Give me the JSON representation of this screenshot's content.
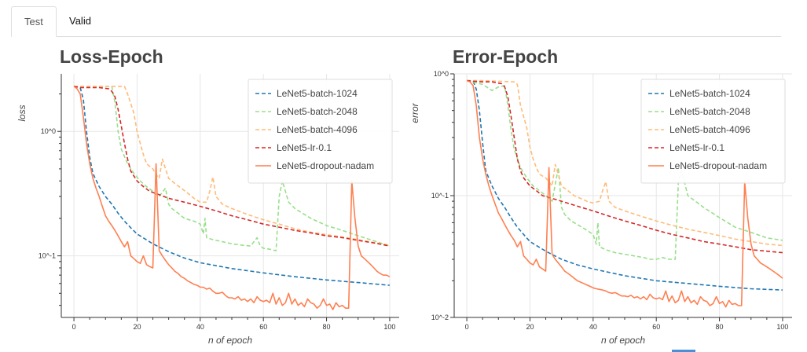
{
  "tabs": [
    {
      "label": "Test",
      "active": true
    },
    {
      "label": "Valid",
      "active": false
    }
  ],
  "chart_data": [
    {
      "type": "line",
      "title": "Loss-Epoch",
      "xlabel": "n of epoch",
      "ylabel": "loss",
      "yscale": "log",
      "xlim": [
        -4,
        103
      ],
      "ylim": [
        0.032,
        2.9
      ],
      "xticks": [
        0,
        20,
        40,
        60,
        80,
        100
      ],
      "yticks": [
        {
          "value": 1.0,
          "label": "10^0"
        },
        {
          "value": 0.1,
          "label": "10^-1"
        }
      ],
      "grid": true,
      "legend": "top-right",
      "series": [
        {
          "name": "LeNet5-batch-1024",
          "color": "#1f77b4",
          "dash": "dash",
          "x": [
            0,
            2,
            3,
            4,
            5,
            6,
            8,
            10,
            12,
            14,
            16,
            18,
            20,
            25,
            30,
            35,
            40,
            50,
            60,
            70,
            80,
            90,
            100
          ],
          "y": [
            2.3,
            2.25,
            1.8,
            1.0,
            0.62,
            0.46,
            0.36,
            0.3,
            0.26,
            0.22,
            0.19,
            0.168,
            0.15,
            0.125,
            0.108,
            0.096,
            0.088,
            0.079,
            0.073,
            0.068,
            0.064,
            0.061,
            0.058
          ]
        },
        {
          "name": "LeNet5-batch-2048",
          "color": "#98df8a",
          "dash": "dash",
          "x": [
            0,
            5,
            8,
            10,
            12,
            13,
            14,
            15,
            17,
            19,
            21,
            23,
            25,
            27,
            29,
            30,
            31,
            33,
            35,
            38,
            40,
            41,
            41.5,
            42,
            44,
            47,
            50,
            53,
            56,
            57,
            58,
            59,
            60,
            62,
            64,
            65,
            66,
            68,
            70,
            75,
            80,
            85,
            90,
            95,
            100
          ],
          "y": [
            2.3,
            2.3,
            2.3,
            2.3,
            2.3,
            1.7,
            1.0,
            0.72,
            0.55,
            0.46,
            0.4,
            0.36,
            0.33,
            0.3,
            0.35,
            0.26,
            0.24,
            0.22,
            0.2,
            0.19,
            0.18,
            0.15,
            0.2,
            0.14,
            0.135,
            0.13,
            0.125,
            0.122,
            0.12,
            0.13,
            0.14,
            0.12,
            0.115,
            0.113,
            0.11,
            0.3,
            0.4,
            0.27,
            0.24,
            0.2,
            0.175,
            0.16,
            0.145,
            0.132,
            0.12
          ]
        },
        {
          "name": "LeNet5-batch-4096",
          "color": "#ffbb78",
          "dash": "dash",
          "x": [
            0,
            5,
            10,
            15,
            16,
            17,
            19,
            20,
            21,
            22,
            23,
            25,
            26,
            27,
            28,
            29,
            30,
            32,
            34,
            36,
            38,
            40,
            42,
            43,
            44,
            45,
            47,
            50,
            55,
            60,
            65,
            70,
            75,
            80,
            85,
            90,
            95,
            100
          ],
          "y": [
            2.3,
            2.3,
            2.3,
            2.3,
            2.3,
            2.0,
            1.4,
            1.0,
            0.8,
            0.65,
            0.55,
            0.5,
            0.45,
            0.42,
            0.6,
            0.5,
            0.42,
            0.38,
            0.35,
            0.32,
            0.29,
            0.27,
            0.27,
            0.33,
            0.43,
            0.3,
            0.26,
            0.24,
            0.215,
            0.195,
            0.18,
            0.165,
            0.155,
            0.148,
            0.142,
            0.135,
            0.128,
            0.122
          ]
        },
        {
          "name": "LeNet5-lr-0.1",
          "color": "#d62728",
          "dash": "dash",
          "x": [
            0,
            2,
            5,
            8,
            11,
            12,
            13,
            14,
            15,
            16,
            17,
            18,
            20,
            22,
            24,
            27,
            30,
            35,
            40,
            45,
            50,
            55,
            60,
            65,
            70,
            75,
            80,
            85,
            90,
            95,
            100
          ],
          "y": [
            2.3,
            2.25,
            2.25,
            2.25,
            2.2,
            2.1,
            1.9,
            1.5,
            1.1,
            0.8,
            0.6,
            0.48,
            0.4,
            0.36,
            0.33,
            0.31,
            0.29,
            0.27,
            0.25,
            0.23,
            0.21,
            0.195,
            0.18,
            0.17,
            0.16,
            0.153,
            0.145,
            0.14,
            0.133,
            0.127,
            0.12
          ]
        },
        {
          "name": "LeNet5-dropout-nadam",
          "color": "#ff7f50",
          "dash": "solid",
          "x": [
            0,
            1,
            2,
            3,
            4,
            5,
            6,
            7,
            8,
            9,
            10,
            11,
            12,
            13,
            14,
            15,
            16,
            17,
            18,
            19,
            20,
            21,
            22,
            23,
            24,
            25,
            26,
            27,
            28,
            29,
            30,
            31,
            32,
            33,
            34,
            35,
            36,
            37,
            38,
            39,
            40,
            41,
            42,
            43,
            44,
            45,
            46,
            47,
            48,
            49,
            50,
            51,
            52,
            53,
            54,
            55,
            56,
            57,
            58,
            59,
            60,
            61,
            62,
            63,
            64,
            65,
            66,
            67,
            68,
            69,
            70,
            71,
            72,
            73,
            74,
            75,
            76,
            77,
            78,
            79,
            80,
            81,
            82,
            83,
            84,
            85,
            86,
            87,
            88,
            89,
            90,
            91,
            92,
            93,
            94,
            95,
            96,
            97,
            98,
            99,
            100
          ],
          "y": [
            2.3,
            2.2,
            2.0,
            1.3,
            0.8,
            0.55,
            0.42,
            0.35,
            0.3,
            0.25,
            0.21,
            0.19,
            0.175,
            0.16,
            0.145,
            0.13,
            0.118,
            0.13,
            0.1,
            0.095,
            0.09,
            0.087,
            0.1,
            0.085,
            0.082,
            0.08,
            0.55,
            0.11,
            0.1,
            0.092,
            0.085,
            0.08,
            0.075,
            0.072,
            0.068,
            0.066,
            0.063,
            0.061,
            0.059,
            0.058,
            0.056,
            0.056,
            0.054,
            0.055,
            0.052,
            0.05,
            0.05,
            0.051,
            0.048,
            0.046,
            0.046,
            0.045,
            0.047,
            0.044,
            0.045,
            0.043,
            0.045,
            0.042,
            0.047,
            0.044,
            0.043,
            0.044,
            0.042,
            0.05,
            0.041,
            0.046,
            0.04,
            0.042,
            0.05,
            0.041,
            0.045,
            0.04,
            0.042,
            0.039,
            0.045,
            0.042,
            0.041,
            0.038,
            0.04,
            0.045,
            0.04,
            0.041,
            0.037,
            0.042,
            0.039,
            0.04,
            0.038,
            0.038,
            0.4,
            0.2,
            0.12,
            0.1,
            0.095,
            0.09,
            0.085,
            0.08,
            0.075,
            0.072,
            0.07,
            0.07,
            0.068
          ]
        }
      ]
    },
    {
      "type": "line",
      "title": "Error-Epoch",
      "xlabel": "n of epoch",
      "ylabel": "error",
      "yscale": "log",
      "xlim": [
        -4,
        103
      ],
      "ylim": [
        0.01,
        1.0
      ],
      "xticks": [
        0,
        20,
        40,
        60,
        80,
        100
      ],
      "yticks": [
        {
          "value": 1.0,
          "label": "10^0"
        },
        {
          "value": 0.1,
          "label": "10^-1"
        },
        {
          "value": 0.01,
          "label": "10^-2"
        }
      ],
      "grid": true,
      "legend": "top-right",
      "series": [
        {
          "name": "LeNet5-batch-1024",
          "color": "#1f77b4",
          "dash": "dash",
          "x": [
            0,
            2,
            3,
            4,
            5,
            6,
            8,
            10,
            12,
            14,
            16,
            18,
            20,
            25,
            30,
            35,
            40,
            50,
            60,
            70,
            80,
            90,
            100
          ],
          "y": [
            0.88,
            0.87,
            0.75,
            0.5,
            0.27,
            0.16,
            0.12,
            0.095,
            0.08,
            0.066,
            0.055,
            0.048,
            0.042,
            0.035,
            0.03,
            0.027,
            0.025,
            0.022,
            0.02,
            0.019,
            0.018,
            0.0172,
            0.0168
          ]
        },
        {
          "name": "LeNet5-batch-2048",
          "color": "#98df8a",
          "dash": "dash",
          "x": [
            0,
            5,
            8,
            10,
            12,
            13,
            14,
            15,
            17,
            19,
            21,
            23,
            25,
            27,
            29,
            30,
            31,
            33,
            35,
            38,
            40,
            41,
            41.5,
            42,
            44,
            47,
            50,
            53,
            56,
            58,
            60,
            62,
            64,
            66,
            67,
            68,
            70,
            75,
            80,
            85,
            90,
            95,
            100
          ],
          "y": [
            0.88,
            0.82,
            0.73,
            0.78,
            0.8,
            0.55,
            0.35,
            0.24,
            0.17,
            0.14,
            0.12,
            0.11,
            0.1,
            0.09,
            0.17,
            0.08,
            0.07,
            0.062,
            0.058,
            0.052,
            0.048,
            0.04,
            0.06,
            0.038,
            0.036,
            0.034,
            0.033,
            0.032,
            0.031,
            0.03,
            0.03,
            0.031,
            0.03,
            0.03,
            0.13,
            0.16,
            0.1,
            0.08,
            0.066,
            0.055,
            0.05,
            0.045,
            0.043
          ]
        },
        {
          "name": "LeNet5-batch-4096",
          "color": "#ffbb78",
          "dash": "dash",
          "x": [
            0,
            5,
            10,
            15,
            16,
            17,
            19,
            20,
            21,
            22,
            23,
            25,
            26,
            27,
            28,
            29,
            30,
            32,
            34,
            36,
            38,
            40,
            42,
            43,
            44,
            45,
            47,
            50,
            55,
            60,
            65,
            70,
            75,
            80,
            85,
            90,
            95,
            100
          ],
          "y": [
            0.88,
            0.88,
            0.87,
            0.86,
            0.82,
            0.55,
            0.36,
            0.25,
            0.2,
            0.17,
            0.15,
            0.14,
            0.13,
            0.12,
            0.18,
            0.15,
            0.12,
            0.11,
            0.1,
            0.095,
            0.09,
            0.087,
            0.09,
            0.11,
            0.13,
            0.09,
            0.08,
            0.075,
            0.068,
            0.062,
            0.057,
            0.053,
            0.05,
            0.047,
            0.044,
            0.042,
            0.04,
            0.039
          ]
        },
        {
          "name": "LeNet5-lr-0.1",
          "color": "#d62728",
          "dash": "dash",
          "x": [
            0,
            2,
            5,
            8,
            11,
            12,
            13,
            14,
            15,
            16,
            17,
            18,
            20,
            22,
            24,
            27,
            30,
            35,
            40,
            45,
            50,
            55,
            60,
            65,
            70,
            75,
            80,
            85,
            90,
            95,
            100
          ],
          "y": [
            0.88,
            0.87,
            0.86,
            0.86,
            0.83,
            0.78,
            0.65,
            0.45,
            0.3,
            0.2,
            0.16,
            0.14,
            0.12,
            0.11,
            0.1,
            0.095,
            0.09,
            0.082,
            0.075,
            0.068,
            0.062,
            0.057,
            0.052,
            0.048,
            0.045,
            0.042,
            0.04,
            0.038,
            0.036,
            0.035,
            0.034
          ]
        },
        {
          "name": "LeNet5-dropout-nadam",
          "color": "#ff7f50",
          "dash": "solid",
          "x": [
            0,
            1,
            2,
            3,
            4,
            5,
            6,
            7,
            8,
            9,
            10,
            11,
            12,
            13,
            14,
            15,
            16,
            17,
            18,
            19,
            20,
            21,
            22,
            23,
            24,
            25,
            26,
            27,
            28,
            29,
            30,
            31,
            32,
            33,
            34,
            35,
            36,
            37,
            38,
            39,
            40,
            41,
            42,
            43,
            44,
            45,
            46,
            47,
            48,
            49,
            50,
            51,
            52,
            53,
            54,
            55,
            56,
            57,
            58,
            59,
            60,
            61,
            62,
            63,
            64,
            65,
            66,
            67,
            68,
            69,
            70,
            71,
            72,
            73,
            74,
            75,
            76,
            77,
            78,
            79,
            80,
            81,
            82,
            83,
            84,
            85,
            86,
            87,
            88,
            89,
            90,
            91,
            92,
            93,
            94,
            95,
            96,
            97,
            98,
            99,
            100
          ],
          "y": [
            0.88,
            0.86,
            0.8,
            0.55,
            0.3,
            0.2,
            0.15,
            0.12,
            0.1,
            0.085,
            0.072,
            0.065,
            0.058,
            0.052,
            0.047,
            0.043,
            0.038,
            0.042,
            0.032,
            0.03,
            0.028,
            0.027,
            0.03,
            0.026,
            0.025,
            0.024,
            0.17,
            0.033,
            0.03,
            0.028,
            0.026,
            0.024,
            0.023,
            0.022,
            0.021,
            0.02,
            0.0195,
            0.019,
            0.0185,
            0.018,
            0.0175,
            0.0172,
            0.017,
            0.0168,
            0.0165,
            0.016,
            0.0158,
            0.016,
            0.0155,
            0.015,
            0.015,
            0.0148,
            0.0152,
            0.0145,
            0.0148,
            0.0142,
            0.0148,
            0.014,
            0.0155,
            0.0145,
            0.0142,
            0.0145,
            0.014,
            0.0165,
            0.0135,
            0.015,
            0.0132,
            0.0138,
            0.0165,
            0.0135,
            0.0148,
            0.0132,
            0.0138,
            0.0128,
            0.0148,
            0.0138,
            0.0135,
            0.0125,
            0.013,
            0.0148,
            0.013,
            0.0135,
            0.0122,
            0.0138,
            0.0128,
            0.013,
            0.0125,
            0.0125,
            0.13,
            0.065,
            0.04,
            0.032,
            0.03,
            0.028,
            0.027,
            0.026,
            0.025,
            0.024,
            0.023,
            0.022,
            0.021
          ]
        }
      ]
    }
  ]
}
